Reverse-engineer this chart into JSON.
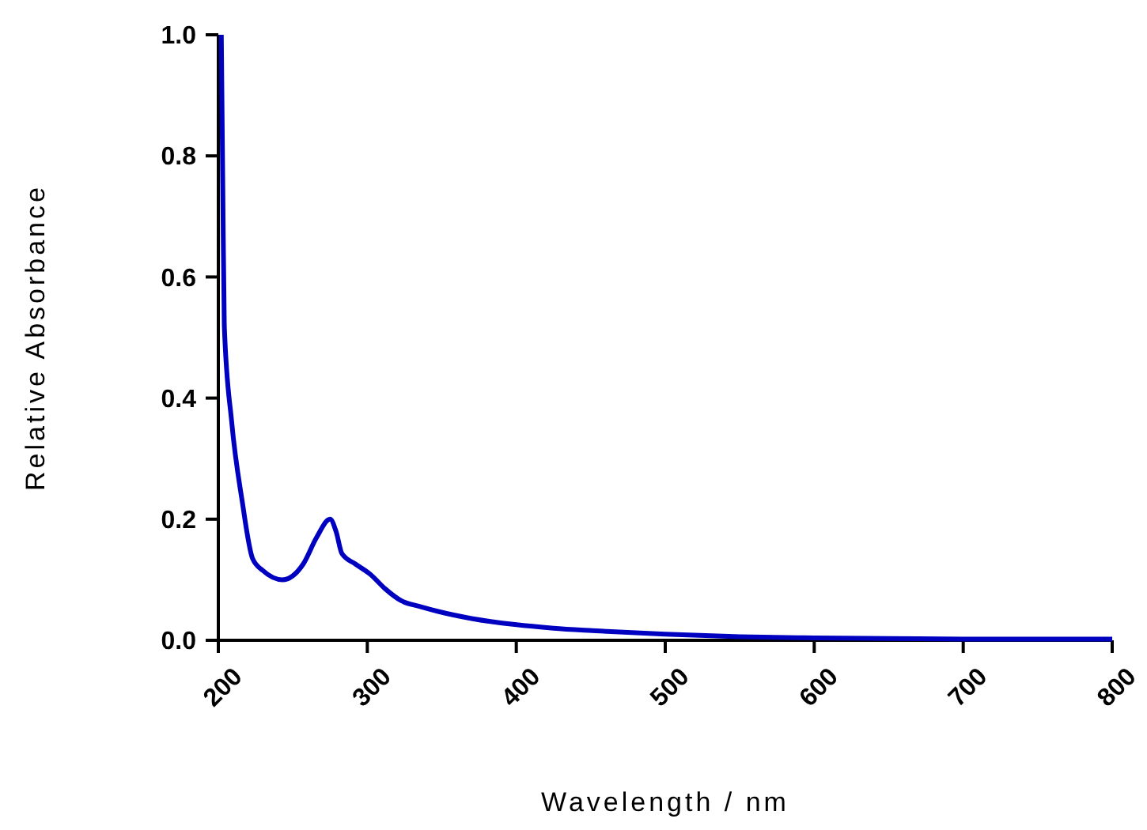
{
  "chart_data": {
    "type": "line",
    "xlabel": "Wavelength / nm",
    "ylabel": "Relative Absorbance",
    "xlim": [
      200,
      800
    ],
    "ylim": [
      0,
      1.0
    ],
    "xticks": [
      200,
      300,
      400,
      500,
      600,
      700,
      800
    ],
    "yticks": [
      {
        "value": 0,
        "label": "0.0"
      },
      {
        "value": 0.2,
        "label": "0.2"
      },
      {
        "value": 0.4,
        "label": "0.4"
      },
      {
        "value": 0.6,
        "label": "0.6"
      },
      {
        "value": 0.8,
        "label": "0.8"
      },
      {
        "value": 1.0,
        "label": "1.0"
      }
    ],
    "grid": false,
    "marker": "none",
    "line_style": "solid",
    "series": [
      {
        "color": "#0000c0",
        "x": [
          202,
          203,
          204,
          209,
          216,
          223,
          230,
          243,
          257,
          266,
          275,
          279,
          283,
          292,
          302,
          312,
          323,
          335,
          347,
          370,
          399,
          425,
          451,
          500,
          550,
          600,
          650,
          700,
          750,
          800
        ],
        "values": [
          1.0,
          0.75,
          0.52,
          0.36,
          0.23,
          0.135,
          0.115,
          0.1,
          0.126,
          0.17,
          0.2,
          0.18,
          0.143,
          0.126,
          0.109,
          0.085,
          0.065,
          0.056,
          0.048,
          0.036,
          0.026,
          0.02,
          0.016,
          0.01,
          0.006,
          0.004,
          0.003,
          0.002,
          0.002,
          0.002
        ]
      }
    ]
  }
}
